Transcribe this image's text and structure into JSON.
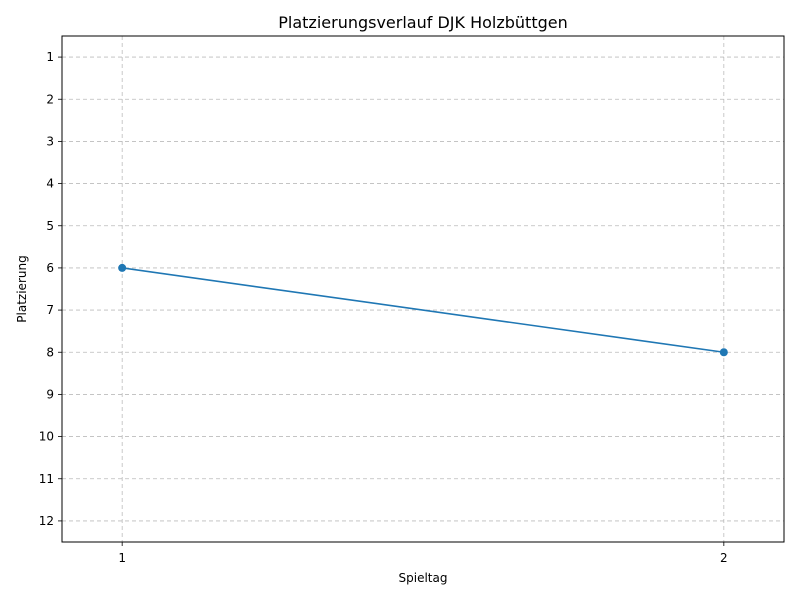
{
  "chart_data": {
    "type": "line",
    "title": "Platzierungsverlauf DJK Holzbüttgen",
    "xlabel": "Spieltag",
    "ylabel": "Platzierung",
    "x": [
      1,
      2
    ],
    "x_ticks": [
      "1",
      "2"
    ],
    "y_ticks": [
      "1",
      "2",
      "3",
      "4",
      "5",
      "6",
      "7",
      "8",
      "9",
      "10",
      "11",
      "12"
    ],
    "ylim": [
      12.5,
      0.5
    ],
    "xlim": [
      0.9,
      2.1
    ],
    "y_inverted": true,
    "grid": true,
    "series": [
      {
        "values": [
          6,
          8
        ],
        "color": "#1f77b4",
        "marker": "circle"
      }
    ]
  }
}
